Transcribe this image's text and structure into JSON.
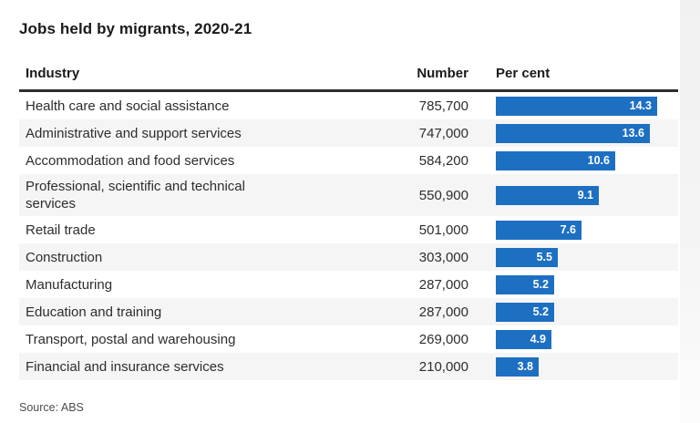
{
  "title": "Jobs held by migrants, 2020-21",
  "source_note": "Source: ABS",
  "colors": {
    "bar_blue": "#1d6fc2",
    "stripe_gray": "#f5f5f5",
    "header_rule": "#2e2e2e"
  },
  "table": {
    "headers": [
      "Industry",
      "Number",
      "Per cent"
    ]
  },
  "chart_data": {
    "type": "bar",
    "orientation": "horizontal",
    "title": "Jobs held by migrants, 2020-21",
    "categories": [
      "Health care and social assistance",
      "Administrative and support services",
      "Accommodation and food services",
      "Professional, scientific and technical services",
      "Retail trade",
      "Construction",
      "Manufacturing",
      "Education and training",
      "Transport, postal and warehousing",
      "Financial and insurance services"
    ],
    "series": [
      {
        "name": "Number",
        "values": [
          785700,
          747000,
          584200,
          550900,
          501000,
          303000,
          287000,
          287000,
          269000,
          210000
        ],
        "display": [
          "785,700",
          "747,000",
          "584,200",
          "550,900",
          "501,000",
          "303,000",
          "287,000",
          "287,000",
          "269,000",
          "210,000"
        ]
      },
      {
        "name": "Per cent",
        "values": [
          14.3,
          13.6,
          10.6,
          9.1,
          7.6,
          5.5,
          5.2,
          5.2,
          4.9,
          3.8
        ]
      }
    ],
    "value_labels": "inside-bar-right",
    "xlim": [
      0,
      16.1
    ],
    "grid": false,
    "legend": false,
    "source": "Source: ABS"
  }
}
